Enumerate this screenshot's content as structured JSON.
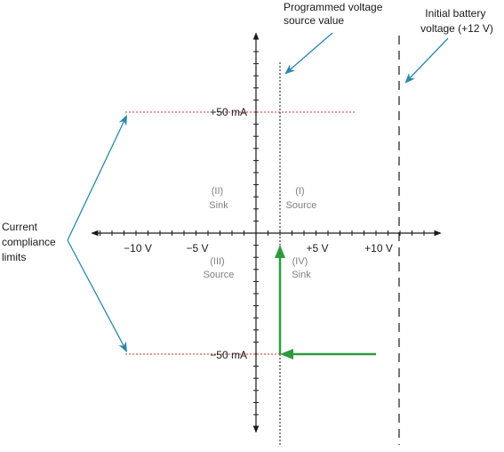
{
  "colors": {
    "axis": "#1a1a1a",
    "compliance_line": "#c0392b",
    "callout_arrow": "#2b88a8",
    "sweep_path": "#2e9a3e",
    "quadrant_label": "#808080"
  },
  "annotations": {
    "programmed_voltage": [
      "Programmed voltage",
      "source value"
    ],
    "initial_battery": [
      "Initial battery",
      "voltage (+12 V)"
    ],
    "current_compliance": [
      "Current",
      "compliance",
      "limits"
    ]
  },
  "y_labels": {
    "plus_50": "+50 mA",
    "minus_50": "−50 mA"
  },
  "x_ticks": [
    "−10 V",
    "−5 V",
    "+5 V",
    "+10 V"
  ],
  "quadrants": {
    "q1": {
      "numeral": "(I)",
      "name": "Source"
    },
    "q2": {
      "numeral": "(II)",
      "name": "Sink"
    },
    "q3": {
      "numeral": "(III)",
      "name": "Source"
    },
    "q4": {
      "numeral": "(IV)",
      "name": "Sink"
    }
  }
}
